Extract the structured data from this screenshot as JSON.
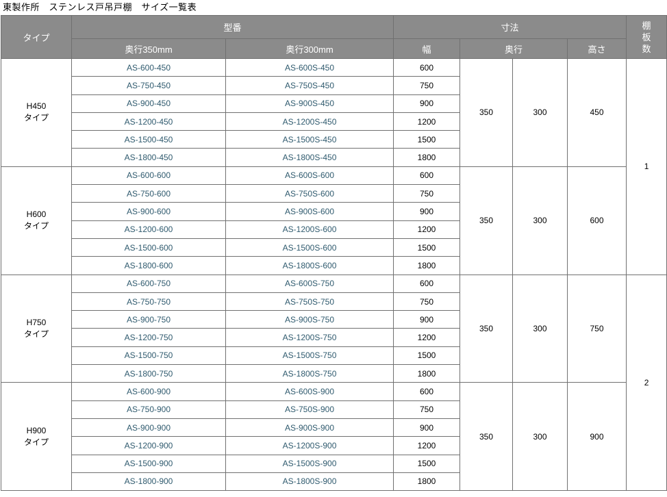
{
  "title": "東製作所　ステンレス戸吊戸棚　サイズ一覧表",
  "colors": {
    "header_bg": "#8b8b8b",
    "header_text": "#ffffff",
    "border": "#707070",
    "model_text": "#2f5a6e",
    "body_text": "#000000"
  },
  "table": {
    "headers": {
      "type": "タイプ",
      "model": "型番",
      "depth350": "奥行350mm",
      "depth300": "奥行300mm",
      "dimensions": "寸法",
      "width": "幅",
      "depth": "奥行",
      "height": "高さ",
      "shelf_count": "棚板数"
    },
    "shelf_counts": [
      "1",
      "2"
    ],
    "groups": [
      {
        "type_label": "H450",
        "type_suffix": "タイプ",
        "depth350_value": "350",
        "depth300_value": "300",
        "height_value": "450",
        "rows": [
          {
            "model_350": "AS-600-450",
            "model_300": "AS-600S-450",
            "width": "600"
          },
          {
            "model_350": "AS-750-450",
            "model_300": "AS-750S-450",
            "width": "750"
          },
          {
            "model_350": "AS-900-450",
            "model_300": "AS-900S-450",
            "width": "900"
          },
          {
            "model_350": "AS-1200-450",
            "model_300": "AS-1200S-450",
            "width": "1200"
          },
          {
            "model_350": "AS-1500-450",
            "model_300": "AS-1500S-450",
            "width": "1500"
          },
          {
            "model_350": "AS-1800-450",
            "model_300": "AS-1800S-450",
            "width": "1800"
          }
        ]
      },
      {
        "type_label": "H600",
        "type_suffix": "タイプ",
        "depth350_value": "350",
        "depth300_value": "300",
        "height_value": "600",
        "rows": [
          {
            "model_350": "AS-600-600",
            "model_300": "AS-600S-600",
            "width": "600"
          },
          {
            "model_350": "AS-750-600",
            "model_300": "AS-750S-600",
            "width": "750"
          },
          {
            "model_350": "AS-900-600",
            "model_300": "AS-900S-600",
            "width": "900"
          },
          {
            "model_350": "AS-1200-600",
            "model_300": "AS-1200S-600",
            "width": "1200"
          },
          {
            "model_350": "AS-1500-600",
            "model_300": "AS-1500S-600",
            "width": "1500"
          },
          {
            "model_350": "AS-1800-600",
            "model_300": "AS-1800S-600",
            "width": "1800"
          }
        ]
      },
      {
        "type_label": "H750",
        "type_suffix": "タイプ",
        "depth350_value": "350",
        "depth300_value": "300",
        "height_value": "750",
        "rows": [
          {
            "model_350": "AS-600-750",
            "model_300": "AS-600S-750",
            "width": "600"
          },
          {
            "model_350": "AS-750-750",
            "model_300": "AS-750S-750",
            "width": "750"
          },
          {
            "model_350": "AS-900-750",
            "model_300": "AS-900S-750",
            "width": "900"
          },
          {
            "model_350": "AS-1200-750",
            "model_300": "AS-1200S-750",
            "width": "1200"
          },
          {
            "model_350": "AS-1500-750",
            "model_300": "AS-1500S-750",
            "width": "1500"
          },
          {
            "model_350": "AS-1800-750",
            "model_300": "AS-1800S-750",
            "width": "1800"
          }
        ]
      },
      {
        "type_label": "H900",
        "type_suffix": "タイプ",
        "depth350_value": "350",
        "depth300_value": "300",
        "height_value": "900",
        "rows": [
          {
            "model_350": "AS-600-900",
            "model_300": "AS-600S-900",
            "width": "600"
          },
          {
            "model_350": "AS-750-900",
            "model_300": "AS-750S-900",
            "width": "750"
          },
          {
            "model_350": "AS-900-900",
            "model_300": "AS-900S-900",
            "width": "900"
          },
          {
            "model_350": "AS-1200-900",
            "model_300": "AS-1200S-900",
            "width": "1200"
          },
          {
            "model_350": "AS-1500-900",
            "model_300": "AS-1500S-900",
            "width": "1500"
          },
          {
            "model_350": "AS-1800-900",
            "model_300": "AS-1800S-900",
            "width": "1800"
          }
        ]
      }
    ]
  }
}
